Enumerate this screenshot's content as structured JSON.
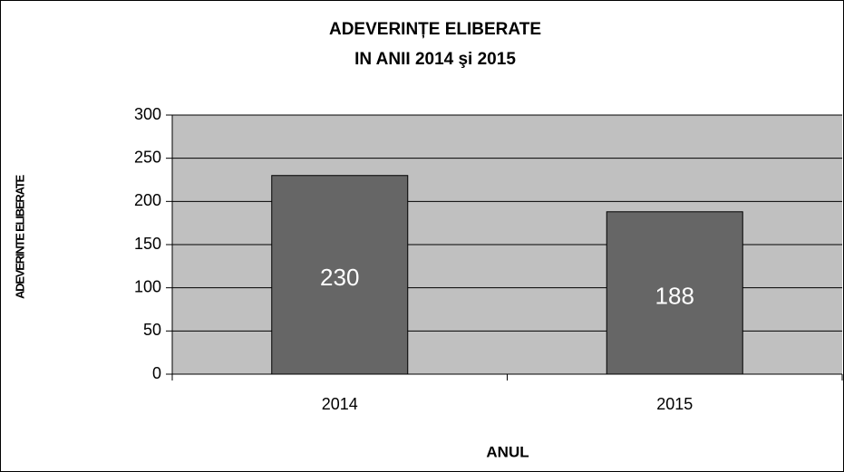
{
  "chart_data": {
    "type": "bar",
    "title": [
      "ADEVERINȚE ELIBERATE",
      "IN  ANII 2014 şi 2015"
    ],
    "x_label": "ANUL",
    "y_label": "ADEVERINTE ELIBERATE",
    "categories": [
      "2014",
      "2015"
    ],
    "values": [
      230,
      188
    ],
    "color": "#666666",
    "ylim": [
      0,
      300
    ],
    "yticks": [
      0,
      50,
      100,
      150,
      200,
      250,
      300
    ],
    "grid": true
  }
}
